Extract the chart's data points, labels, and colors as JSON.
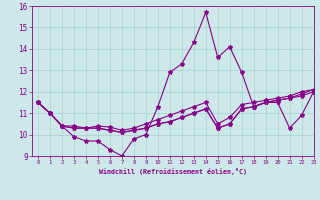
{
  "xlabel": "Windchill (Refroidissement éolien,°C)",
  "ylabel": "",
  "background_color": "#cce8e8",
  "line_color": "#880088",
  "xlim": [
    -0.5,
    23
  ],
  "ylim": [
    9,
    16
  ],
  "yticks": [
    9,
    10,
    11,
    12,
    13,
    14,
    15,
    16
  ],
  "xticks": [
    0,
    1,
    2,
    3,
    4,
    5,
    6,
    7,
    8,
    9,
    10,
    11,
    12,
    13,
    14,
    15,
    16,
    17,
    18,
    19,
    20,
    21,
    22,
    23
  ],
  "series": [
    [
      11.5,
      11.0,
      10.4,
      9.9,
      9.7,
      9.7,
      9.3,
      9.0,
      9.8,
      10.0,
      11.3,
      12.9,
      13.3,
      14.3,
      15.7,
      13.6,
      14.1,
      12.9,
      11.3,
      11.5,
      11.5,
      10.3,
      10.9,
      12.0
    ],
    [
      11.5,
      11.0,
      10.4,
      10.3,
      10.3,
      10.3,
      10.2,
      10.1,
      10.2,
      10.3,
      10.5,
      10.6,
      10.8,
      11.0,
      11.2,
      10.3,
      10.5,
      11.2,
      11.3,
      11.5,
      11.6,
      11.7,
      11.8,
      12.0
    ],
    [
      11.5,
      11.0,
      10.4,
      10.3,
      10.3,
      10.3,
      10.2,
      10.1,
      10.2,
      10.3,
      10.5,
      10.6,
      10.8,
      11.0,
      11.2,
      10.3,
      10.5,
      11.2,
      11.3,
      11.5,
      11.6,
      11.7,
      11.9,
      12.1
    ],
    [
      11.5,
      11.0,
      10.4,
      10.4,
      10.3,
      10.4,
      10.35,
      10.2,
      10.3,
      10.5,
      10.7,
      10.9,
      11.1,
      11.3,
      11.5,
      10.5,
      10.8,
      11.4,
      11.5,
      11.6,
      11.7,
      11.8,
      12.0,
      12.1
    ]
  ]
}
